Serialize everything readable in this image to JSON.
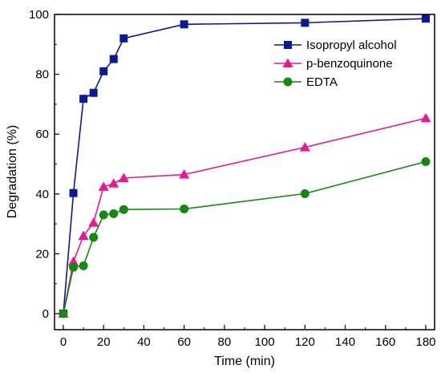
{
  "chart_data": {
    "type": "line",
    "xlabel": "Time (min)",
    "ylabel": "Degradation (%)",
    "xlim": [
      0,
      180
    ],
    "ylim": [
      0,
      100
    ],
    "xticks": [
      0,
      20,
      40,
      60,
      80,
      100,
      120,
      140,
      160,
      180
    ],
    "yticks": [
      0,
      20,
      40,
      60,
      80,
      100
    ],
    "grid": false,
    "legend_position": "top-right",
    "series": [
      {
        "name": "Isopropyl alcohol",
        "color": "#0a1a96",
        "marker": "square",
        "x": [
          0,
          5,
          10,
          15,
          20,
          25,
          30,
          60,
          120,
          180
        ],
        "y": [
          0,
          40.3,
          71.8,
          73.8,
          81.0,
          85.1,
          92.0,
          96.7,
          97.2,
          98.6
        ]
      },
      {
        "name": "p-benzoquinone",
        "color": "#ee1593",
        "marker": "triangle",
        "x": [
          0,
          5,
          10,
          15,
          20,
          25,
          30,
          60,
          120,
          180
        ],
        "y": [
          0,
          17.4,
          26.0,
          30.4,
          42.4,
          43.5,
          45.3,
          46.5,
          55.6,
          65.3
        ]
      },
      {
        "name": "EDTA",
        "color": "#138a0f",
        "marker": "circle",
        "x": [
          0,
          5,
          10,
          15,
          20,
          25,
          30,
          60,
          120,
          180
        ],
        "y": [
          0,
          15.5,
          16.0,
          25.5,
          33.0,
          33.4,
          34.8,
          35.0,
          40.1,
          50.8
        ]
      }
    ]
  }
}
